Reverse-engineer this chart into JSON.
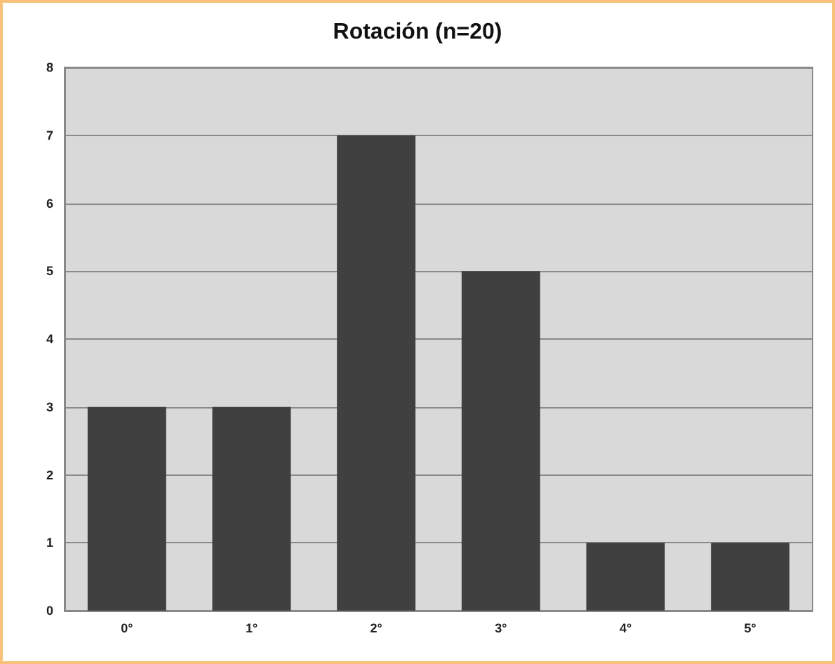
{
  "chart_data": {
    "type": "bar",
    "title": "Rotación (n=20)",
    "categories": [
      "0°",
      "1°",
      "2°",
      "3°",
      "4°",
      "5°"
    ],
    "values": [
      3,
      3,
      7,
      5,
      1,
      1
    ],
    "color": "#404040",
    "ylim": [
      0,
      8
    ],
    "yticks": [
      0,
      1,
      2,
      3,
      4,
      5,
      6,
      7,
      8
    ],
    "grid": "y"
  }
}
